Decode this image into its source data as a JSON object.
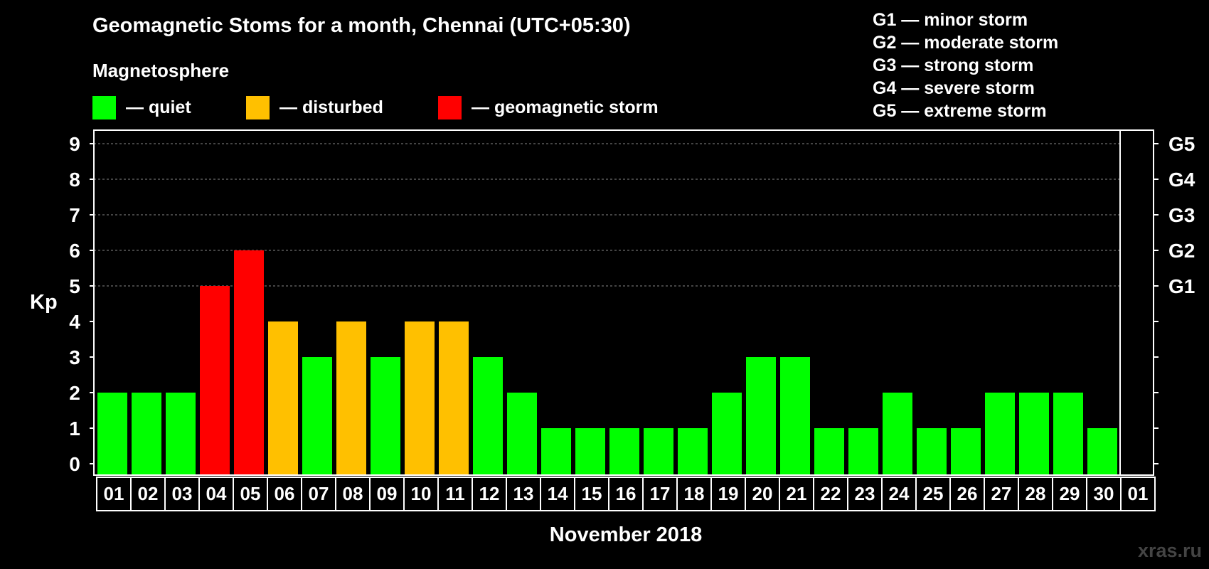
{
  "chart_data": {
    "type": "bar",
    "title": "Geomagnetic Stoms for a month, Chennai (UTC+05:30)",
    "subtitle": "Magnetosphere",
    "xlabel": "November 2018",
    "ylabel": "Kp",
    "ylim": [
      0,
      9
    ],
    "yticks": [
      "0",
      "1",
      "2",
      "3",
      "4",
      "5",
      "6",
      "7",
      "8",
      "9"
    ],
    "right_ticks": [
      {
        "kp": 5,
        "label": "G1"
      },
      {
        "kp": 6,
        "label": "G2"
      },
      {
        "kp": 7,
        "label": "G3"
      },
      {
        "kp": 8,
        "label": "G4"
      },
      {
        "kp": 9,
        "label": "G5"
      }
    ],
    "grid_from": 5,
    "categories": [
      "01",
      "02",
      "03",
      "04",
      "05",
      "06",
      "07",
      "08",
      "09",
      "10",
      "11",
      "12",
      "13",
      "14",
      "15",
      "16",
      "17",
      "18",
      "19",
      "20",
      "21",
      "22",
      "23",
      "24",
      "25",
      "26",
      "27",
      "28",
      "29",
      "30",
      "01"
    ],
    "values": [
      2,
      2,
      2,
      5,
      6,
      4,
      3,
      4,
      3,
      4,
      4,
      3,
      2,
      1,
      1,
      1,
      1,
      1,
      2,
      3,
      3,
      1,
      1,
      2,
      1,
      1,
      2,
      2,
      2,
      1,
      null
    ],
    "colors": {
      "quiet": "#00FF00",
      "disturbed": "#FFC000",
      "storm": "#FF0000",
      "grid": "#888888"
    }
  },
  "legend": [
    {
      "key": "quiet",
      "label": "— quiet"
    },
    {
      "key": "disturbed",
      "label": "— disturbed"
    },
    {
      "key": "storm",
      "label": "— geomagnetic storm"
    }
  ],
  "storm_levels": [
    "G1 — minor storm",
    "G2 — moderate storm",
    "G3 — strong storm",
    "G4 — severe storm",
    "G5 — extreme storm"
  ],
  "watermark": "xras.ru"
}
